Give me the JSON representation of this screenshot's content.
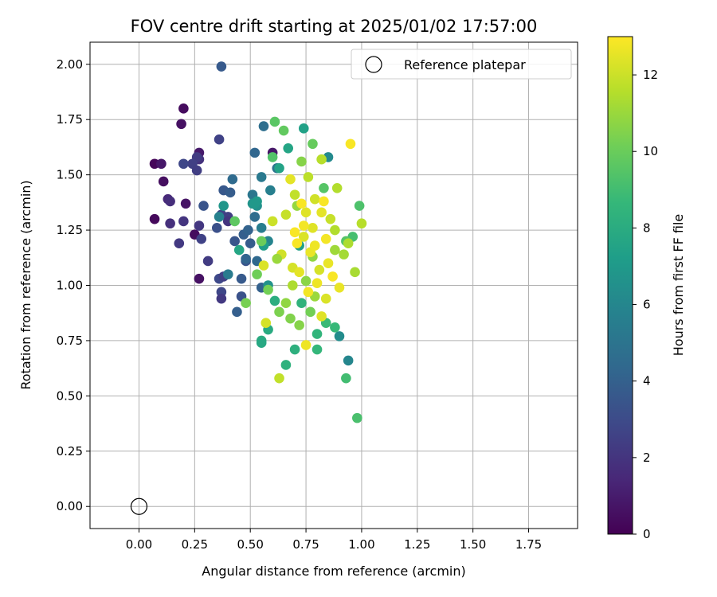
{
  "chart_data": {
    "type": "scatter",
    "title": "FOV centre drift starting at 2025/01/02 17:57:00",
    "xlabel": "Angular distance from reference (arcmin)",
    "ylabel": "Rotation from reference (arcmin)",
    "xlim": [
      -0.22,
      1.97
    ],
    "ylim": [
      -0.1,
      2.1
    ],
    "xticks": [
      "0.00",
      "0.25",
      "0.50",
      "0.75",
      "1.00",
      "1.25",
      "1.50",
      "1.75"
    ],
    "yticks": [
      "0.00",
      "0.25",
      "0.50",
      "0.75",
      "1.00",
      "1.25",
      "1.50",
      "1.75",
      "2.00"
    ],
    "grid": true,
    "legend": {
      "location": "top-right",
      "label": "Reference platepar"
    },
    "reference_point": {
      "x": 0.0,
      "y": 0.0
    },
    "colorbar": {
      "label": "Hours from first FF file",
      "range": [
        0,
        13
      ],
      "ticks": [
        "0",
        "2",
        "4",
        "6",
        "8",
        "10",
        "12"
      ],
      "colormap": [
        "#440154",
        "#482878",
        "#3e4989",
        "#31688e",
        "#26828e",
        "#1f9e89",
        "#35b779",
        "#6ece58",
        "#b5de2b",
        "#fde725"
      ]
    },
    "points": [
      [
        0.07,
        1.55,
        0.2
      ],
      [
        0.2,
        1.8,
        0.4
      ],
      [
        0.19,
        1.73,
        0.6
      ],
      [
        0.1,
        1.55,
        0.8
      ],
      [
        0.11,
        1.47,
        0.5
      ],
      [
        0.07,
        1.3,
        0.3
      ],
      [
        0.21,
        1.37,
        0.7
      ],
      [
        0.27,
        1.6,
        0.9
      ],
      [
        0.25,
        1.23,
        0.4
      ],
      [
        0.27,
        1.03,
        0.6
      ],
      [
        0.6,
        1.6,
        0.8
      ],
      [
        0.13,
        1.39,
        1.5
      ],
      [
        0.14,
        1.38,
        1.7
      ],
      [
        0.14,
        1.28,
        1.8
      ],
      [
        0.2,
        1.29,
        2.0
      ],
      [
        0.18,
        1.19,
        2.2
      ],
      [
        0.27,
        1.57,
        1.9
      ],
      [
        0.26,
        1.58,
        2.3
      ],
      [
        0.24,
        1.55,
        2.5
      ],
      [
        0.2,
        1.55,
        2.8
      ],
      [
        0.26,
        1.52,
        2.4
      ],
      [
        0.27,
        1.27,
        2.1
      ],
      [
        0.28,
        1.21,
        2.6
      ],
      [
        0.31,
        1.11,
        2.3
      ],
      [
        0.36,
        1.66,
        2.6
      ],
      [
        0.37,
        1.32,
        2.7
      ],
      [
        0.36,
        1.03,
        2.9
      ],
      [
        0.38,
        1.04,
        2.5
      ],
      [
        0.37,
        0.97,
        2.8
      ],
      [
        0.37,
        0.94,
        2.2
      ],
      [
        0.4,
        1.31,
        2.4
      ],
      [
        0.4,
        1.29,
        2.0
      ],
      [
        0.37,
        1.99,
        3.7
      ],
      [
        0.29,
        1.36,
        3.4
      ],
      [
        0.35,
        1.26,
        3.2
      ],
      [
        0.38,
        1.43,
        3.6
      ],
      [
        0.41,
        1.42,
        3.8
      ],
      [
        0.43,
        1.2,
        3.5
      ],
      [
        0.44,
        0.88,
        3.9
      ],
      [
        0.46,
        0.95,
        3.3
      ],
      [
        0.46,
        1.03,
        3.7
      ],
      [
        0.48,
        1.11,
        3.4
      ],
      [
        0.47,
        1.23,
        3.9
      ],
      [
        0.49,
        1.25,
        4.1
      ],
      [
        0.5,
        1.19,
        3.8
      ],
      [
        0.48,
        1.12,
        4.2
      ],
      [
        0.42,
        1.48,
        4.5
      ],
      [
        0.52,
        1.6,
        4.3
      ],
      [
        0.52,
        1.31,
        4.6
      ],
      [
        0.53,
        1.11,
        4.4
      ],
      [
        0.55,
        0.99,
        4.0
      ],
      [
        0.56,
        1.72,
        4.7
      ],
      [
        0.51,
        1.41,
        5.1
      ],
      [
        0.55,
        1.49,
        5.3
      ],
      [
        0.59,
        1.43,
        5.6
      ],
      [
        0.62,
        1.53,
        5.0
      ],
      [
        0.4,
        1.05,
        5.4
      ],
      [
        0.36,
        1.31,
        5.7
      ],
      [
        0.55,
        1.26,
        5.5
      ],
      [
        0.58,
        1.2,
        5.9
      ],
      [
        0.85,
        1.58,
        6.2
      ],
      [
        0.94,
        0.66,
        6.0
      ],
      [
        0.9,
        0.77,
        6.3
      ],
      [
        0.53,
        1.36,
        6.5
      ],
      [
        0.38,
        1.36,
        6.8
      ],
      [
        0.51,
        1.37,
        6.7
      ],
      [
        0.53,
        1.38,
        7.0
      ],
      [
        0.52,
        1.37,
        6.9
      ],
      [
        0.56,
        1.18,
        7.2
      ],
      [
        0.58,
        1.0,
        6.6
      ],
      [
        0.74,
        1.71,
        7.4
      ],
      [
        0.72,
        1.18,
        7.3
      ],
      [
        0.63,
        1.53,
        7.5
      ],
      [
        0.67,
        1.62,
        7.6
      ],
      [
        0.45,
        1.16,
        7.7
      ],
      [
        0.55,
        0.75,
        8.0
      ],
      [
        0.55,
        0.74,
        7.8
      ],
      [
        0.58,
        0.8,
        7.9
      ],
      [
        0.61,
        0.93,
        8.1
      ],
      [
        0.66,
        0.64,
        8.3
      ],
      [
        0.7,
        0.71,
        8.2
      ],
      [
        0.73,
        0.92,
        8.4
      ],
      [
        0.8,
        0.78,
        8.5
      ],
      [
        0.8,
        0.71,
        8.6
      ],
      [
        0.84,
        0.83,
        8.8
      ],
      [
        0.88,
        0.81,
        8.7
      ],
      [
        0.93,
        0.58,
        9.0
      ],
      [
        0.98,
        0.4,
        9.2
      ],
      [
        0.96,
        1.22,
        9.1
      ],
      [
        0.99,
        1.36,
        9.3
      ],
      [
        0.93,
        1.2,
        9.5
      ],
      [
        0.6,
        1.58,
        9.4
      ],
      [
        0.61,
        1.74,
        9.6
      ],
      [
        0.65,
        1.7,
        9.8
      ],
      [
        0.78,
        1.64,
        9.9
      ],
      [
        0.43,
        1.29,
        9.7
      ],
      [
        0.55,
        1.2,
        10.0
      ],
      [
        0.53,
        1.05,
        10.1
      ],
      [
        0.48,
        0.92,
        10.3
      ],
      [
        0.58,
        0.98,
        10.2
      ],
      [
        0.63,
        0.88,
        10.4
      ],
      [
        0.68,
        0.85,
        10.5
      ],
      [
        0.72,
        0.82,
        10.6
      ],
      [
        0.75,
        1.02,
        10.7
      ],
      [
        0.78,
        1.13,
        10.8
      ],
      [
        0.71,
        1.36,
        10.9
      ],
      [
        0.79,
        0.95,
        11.0
      ],
      [
        0.88,
        1.16,
        11.1
      ],
      [
        0.92,
        1.14,
        11.2
      ],
      [
        0.97,
        1.06,
        11.3
      ],
      [
        0.94,
        1.19,
        11.4
      ],
      [
        0.89,
        1.44,
        11.5
      ],
      [
        0.82,
        1.57,
        11.6
      ],
      [
        0.76,
        1.49,
        11.7
      ],
      [
        0.7,
        1.41,
        11.8
      ],
      [
        0.66,
        1.32,
        11.9
      ],
      [
        0.6,
        1.29,
        12.0
      ],
      [
        0.64,
        1.14,
        12.1
      ],
      [
        0.69,
        1.08,
        12.2
      ],
      [
        0.74,
        1.22,
        12.3
      ],
      [
        0.78,
        1.26,
        12.4
      ],
      [
        0.82,
        1.33,
        12.5
      ],
      [
        0.85,
        1.1,
        12.6
      ],
      [
        0.8,
        1.01,
        12.7
      ],
      [
        0.76,
        0.97,
        12.8
      ],
      [
        0.73,
        1.37,
        12.9
      ],
      [
        0.68,
        1.48,
        12.5
      ],
      [
        0.84,
        1.21,
        12.8
      ],
      [
        0.87,
        1.04,
        12.9
      ],
      [
        0.9,
        0.99,
        12.6
      ],
      [
        0.82,
        0.86,
        12.4
      ],
      [
        0.75,
        0.73,
        12.7
      ],
      [
        0.57,
        0.83,
        12.2
      ],
      [
        0.95,
        1.64,
        12.9
      ],
      [
        0.63,
        0.58,
        11.8
      ],
      [
        1.0,
        1.28,
        11.6
      ],
      [
        0.56,
        1.09,
        12.3
      ],
      [
        0.71,
        1.19,
        12.9
      ],
      [
        0.79,
        1.39,
        12.1
      ],
      [
        0.86,
        1.3,
        11.9
      ],
      [
        0.77,
        1.15,
        12.6
      ],
      [
        0.81,
        1.07,
        12.2
      ],
      [
        0.69,
        1.0,
        11.4
      ],
      [
        0.66,
        0.92,
        10.8
      ],
      [
        0.83,
        1.44,
        9.5
      ],
      [
        0.73,
        1.56,
        10.6
      ],
      [
        0.74,
        1.27,
        12.8
      ],
      [
        0.84,
        0.94,
        12.3
      ],
      [
        0.88,
        1.25,
        11.5
      ],
      [
        0.62,
        1.12,
        11.0
      ],
      [
        0.77,
        0.88,
        10.2
      ],
      [
        0.7,
        1.24,
        12.9
      ],
      [
        0.79,
        1.18,
        12.7
      ],
      [
        0.72,
        1.06,
        12.5
      ],
      [
        0.83,
        1.38,
        12.9
      ],
      [
        0.75,
        1.33,
        12.4
      ]
    ]
  }
}
